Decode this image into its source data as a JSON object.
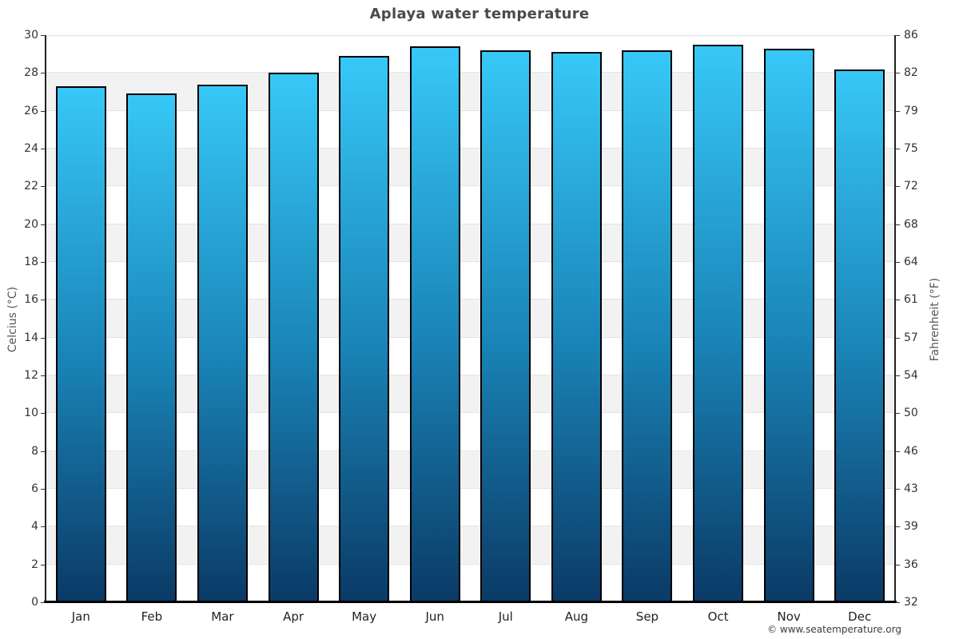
{
  "title": "Aplaya water temperature",
  "footer": {
    "attribution": "© www.seatemperature.org"
  },
  "chart_data": {
    "type": "bar",
    "title": "Aplaya water temperature",
    "categories": [
      "Jan",
      "Feb",
      "Mar",
      "Apr",
      "May",
      "Jun",
      "Jul",
      "Aug",
      "Sep",
      "Oct",
      "Nov",
      "Dec"
    ],
    "values": [
      27.3,
      26.9,
      27.4,
      28.0,
      28.9,
      29.4,
      29.2,
      29.1,
      29.2,
      29.5,
      29.3,
      28.2
    ],
    "unit": "°C",
    "ylabel_left": "Celcius (°C)",
    "ylabel_right": "Fahrenheit (°F)",
    "ylim": [
      0,
      30
    ],
    "celsius_ticks": [
      0,
      2,
      4,
      6,
      8,
      10,
      12,
      14,
      16,
      18,
      20,
      22,
      24,
      26,
      28,
      30
    ],
    "fahrenheit_tick_labels": [
      "32",
      "36",
      "39",
      "43",
      "46",
      "50",
      "54",
      "57",
      "61",
      "64",
      "68",
      "72",
      "75",
      "79",
      "82",
      "86"
    ],
    "grid": "banded-alternating",
    "legend": "none",
    "colors": {
      "bar_gradient_top": "#37c8f7",
      "bar_gradient_mid": "#1a85b8",
      "bar_gradient_bottom": "#0b3a66",
      "bar_border": "#000000",
      "band_gray": "#f2f2f2",
      "band_white": "#ffffff",
      "gridline": "#e4e4e4",
      "title_color": "#4a4a4a",
      "tick_label_color": "#333333"
    }
  }
}
